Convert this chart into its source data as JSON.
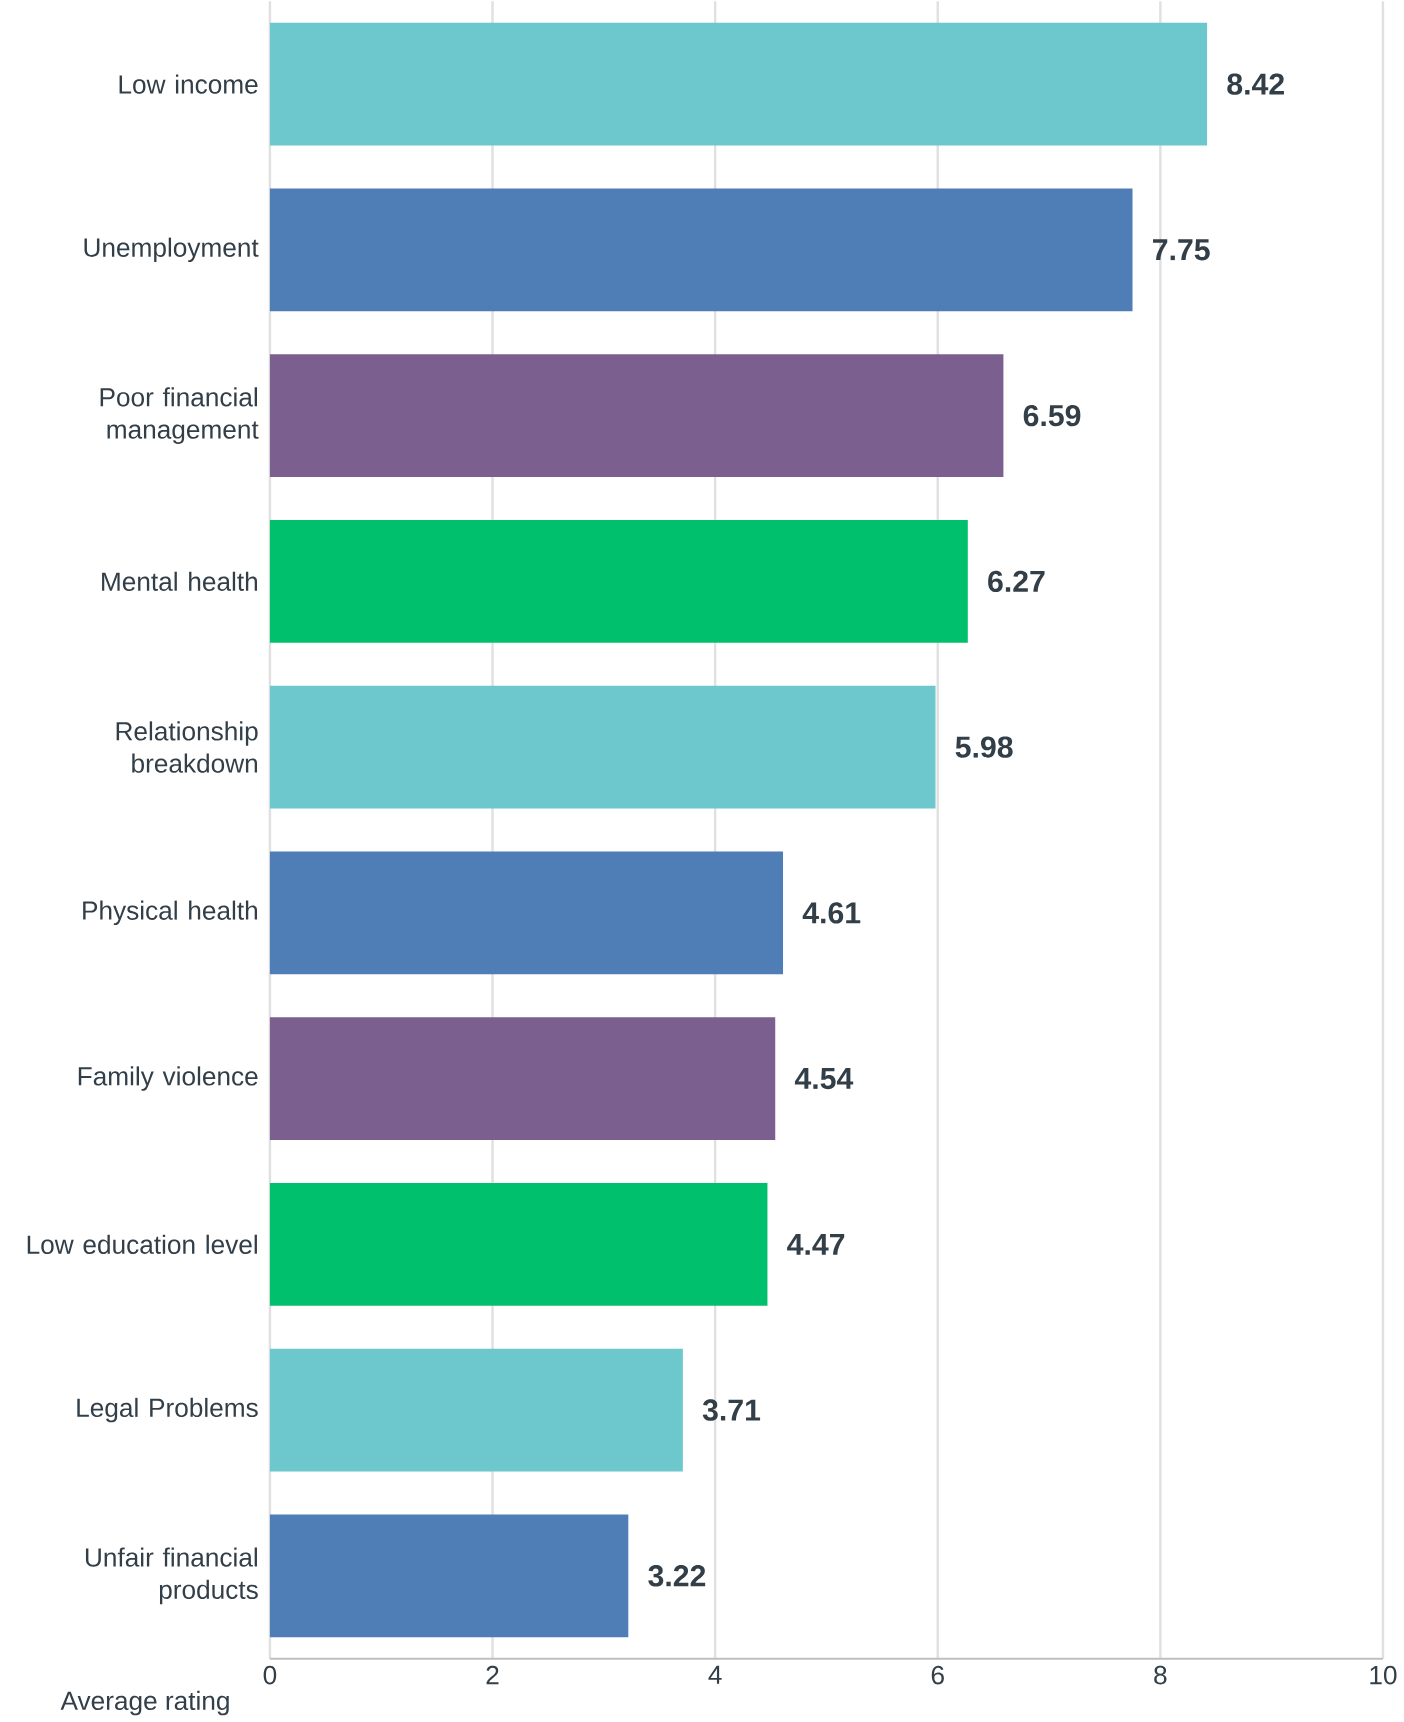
{
  "chart_data": {
    "type": "bar",
    "orientation": "horizontal",
    "xlabel": "Average rating",
    "categories": [
      "Low income",
      "Unemployment",
      "Poor financial management",
      "Mental health",
      "Relationship breakdown",
      "Physical health",
      "Family violence",
      "Low education level",
      "Legal Problems",
      "Unfair financial products"
    ],
    "values": [
      8.42,
      7.75,
      6.59,
      6.27,
      5.98,
      4.61,
      4.54,
      4.47,
      3.71,
      3.22
    ],
    "colors": [
      "#6cc8cc",
      "#4f7db5",
      "#7b5f8f",
      "#00c06e",
      "#6cc8cc",
      "#4f7db5",
      "#7b5f8f",
      "#00c06e",
      "#6cc8cc",
      "#4f7db5"
    ],
    "xlim": [
      0,
      10
    ],
    "xticks": [
      0,
      2,
      4,
      6,
      8,
      10
    ],
    "grid": "x",
    "data_labels": true
  }
}
